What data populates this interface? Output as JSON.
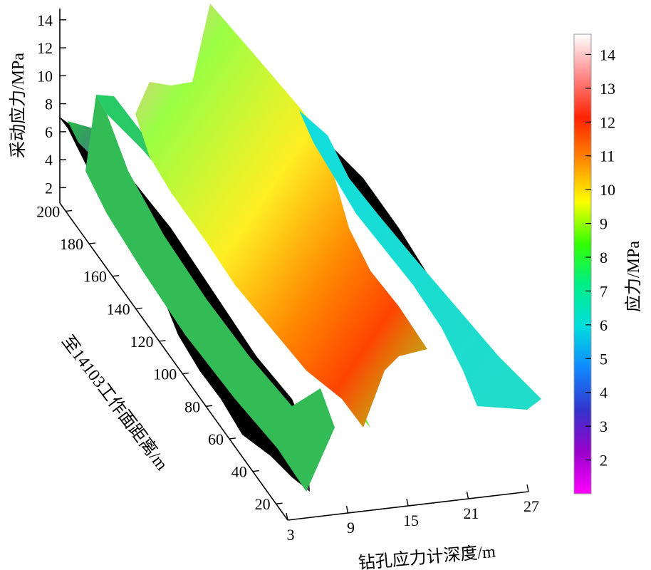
{
  "chart_data": {
    "type": "surface3d",
    "z_axis": {
      "label": "采动应力/MPa",
      "ticks": [
        2,
        4,
        6,
        8,
        10,
        12,
        14
      ],
      "range": [
        1,
        14.5
      ]
    },
    "y_axis": {
      "label": "至14103工作面距离/m",
      "ticks": [
        20,
        40,
        60,
        80,
        100,
        120,
        140,
        160,
        180,
        200
      ],
      "range": [
        10,
        205
      ]
    },
    "x_axis": {
      "label": "钻孔应力计深度/m",
      "ticks": [
        3,
        9,
        15,
        21,
        27
      ],
      "range": [
        3,
        27
      ]
    },
    "colorbar": {
      "label": "应力/MPa",
      "ticks": [
        2,
        3,
        4,
        5,
        6,
        7,
        8,
        9,
        10,
        11,
        12,
        13,
        14
      ],
      "range": [
        1,
        14.6
      ],
      "colormap": [
        "#ff00ff",
        "#9900cc",
        "#3333cc",
        "#1188ff",
        "#00dddd",
        "#00ee88",
        "#33ff00",
        "#ffff00",
        "#ff8800",
        "#ff2200",
        "#ff8888",
        "#ffffff"
      ]
    },
    "series": [
      {
        "x": 3,
        "y": [
          20,
          60,
          100,
          140,
          180,
          200
        ],
        "z": [
          1.5,
          2.0,
          2.5,
          3.0,
          4.0,
          7.0
        ]
      },
      {
        "x": 9,
        "y": [
          20,
          60,
          100,
          140,
          180,
          200
        ],
        "z": [
          7.5,
          7.5,
          7.5,
          8.0,
          8.0,
          8.0
        ]
      },
      {
        "x": 15,
        "y": [
          20,
          60,
          100,
          140,
          180,
          200
        ],
        "z": [
          9.0,
          9.5,
          10.5,
          11.5,
          10.0,
          14.0
        ]
      },
      {
        "x": 21,
        "y": [
          20,
          60,
          100,
          140,
          180,
          200
        ],
        "z": [
          6.0,
          6.0,
          6.0,
          6.0,
          6.0,
          6.0
        ]
      }
    ]
  }
}
